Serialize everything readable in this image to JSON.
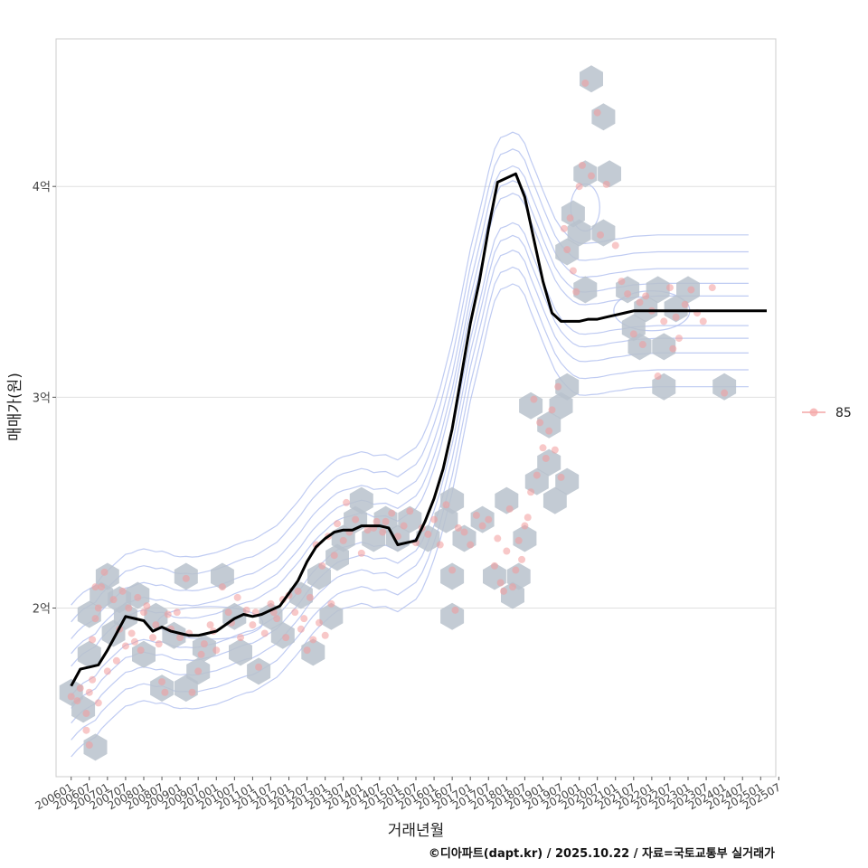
{
  "chart_data": {
    "type": "scatter",
    "title": "",
    "xlabel": "거래년월",
    "ylabel": "매매가(원)",
    "caption": "©디아파트(dapt.kr) / 2025.10.22 / 자료=국토교통부 실거래가",
    "ylim": [
      1.2,
      4.7
    ],
    "xlim": [
      -5,
      233
    ],
    "y_ticks": [
      {
        "value": 2,
        "label": "2억"
      },
      {
        "value": 3,
        "label": "3억"
      },
      {
        "value": 4,
        "label": "4억"
      }
    ],
    "x_ticks": [
      "200601",
      "200607",
      "200701",
      "200707",
      "200801",
      "200807",
      "200901",
      "200907",
      "201001",
      "201007",
      "201101",
      "201107",
      "201201",
      "201207",
      "201301",
      "201307",
      "201401",
      "201407",
      "201501",
      "201507",
      "201601",
      "201607",
      "201701",
      "201707",
      "201801",
      "201807",
      "201901",
      "201907",
      "202001",
      "202007",
      "202101",
      "202107",
      "202201",
      "202207",
      "202301",
      "202307",
      "202401",
      "202407",
      "202501",
      "202507"
    ],
    "legend": {
      "position": "right",
      "entries": [
        {
          "label": "85",
          "color": "#f4a6a6"
        }
      ]
    },
    "colors": {
      "hex": "#b9c2cc",
      "point": "#f29a9a",
      "line": "#000000",
      "contour": "#a9b9ee",
      "grid": "#e0e0e0"
    },
    "series": [
      {
        "name": "moving average (억)",
        "months": [
          0,
          3,
          6,
          9,
          12,
          15,
          18,
          21,
          24,
          27,
          30,
          33,
          36,
          39,
          42,
          45,
          48,
          51,
          54,
          57,
          60,
          63,
          66,
          69,
          72,
          75,
          78,
          81,
          84,
          87,
          90,
          93,
          96,
          99,
          102,
          105,
          108,
          111,
          114,
          117,
          120,
          123,
          126,
          129,
          132,
          135,
          138,
          141,
          144,
          147,
          150,
          153,
          156,
          159,
          162,
          165,
          168,
          171,
          174,
          177,
          180,
          183,
          186,
          189,
          192,
          194,
          196,
          198,
          200,
          202,
          204,
          207,
          210,
          213,
          216,
          219,
          222,
          225,
          228,
          230
        ],
        "values": [
          1.63,
          1.71,
          1.72,
          1.73,
          1.8,
          1.88,
          1.96,
          1.95,
          1.94,
          1.89,
          1.91,
          1.89,
          1.88,
          1.87,
          1.87,
          1.88,
          1.89,
          1.92,
          1.95,
          1.97,
          1.96,
          1.97,
          1.99,
          2.01,
          2.07,
          2.13,
          2.22,
          2.29,
          2.33,
          2.36,
          2.37,
          2.37,
          2.39,
          2.39,
          2.39,
          2.38,
          2.3,
          2.31,
          2.32,
          2.41,
          2.52,
          2.66,
          2.85,
          3.1,
          3.35,
          3.55,
          3.8,
          4.02,
          4.04,
          4.06,
          3.95,
          3.75,
          3.55,
          3.4,
          3.36,
          3.36,
          3.36,
          3.37,
          3.37,
          3.38,
          3.39,
          3.4,
          3.41,
          3.41,
          3.41,
          3.41,
          3.41,
          3.41,
          3.41,
          3.41,
          3.41,
          3.41,
          3.41,
          3.41,
          3.41,
          3.41,
          3.41,
          3.41,
          3.41,
          3.41
        ]
      }
    ],
    "hexbins": [
      {
        "m": 0,
        "v": 1.6
      },
      {
        "m": 4,
        "v": 1.52
      },
      {
        "m": 6,
        "v": 1.78
      },
      {
        "m": 8,
        "v": 1.34
      },
      {
        "m": 6,
        "v": 1.97
      },
      {
        "m": 10,
        "v": 2.06
      },
      {
        "m": 12,
        "v": 2.15
      },
      {
        "m": 14,
        "v": 1.88
      },
      {
        "m": 16,
        "v": 2.04
      },
      {
        "m": 18,
        "v": 1.96
      },
      {
        "m": 22,
        "v": 2.06
      },
      {
        "m": 24,
        "v": 1.78
      },
      {
        "m": 28,
        "v": 1.96
      },
      {
        "m": 30,
        "v": 1.62
      },
      {
        "m": 34,
        "v": 1.87
      },
      {
        "m": 38,
        "v": 1.62
      },
      {
        "m": 38,
        "v": 2.15
      },
      {
        "m": 42,
        "v": 1.7
      },
      {
        "m": 44,
        "v": 1.81
      },
      {
        "m": 50,
        "v": 2.15
      },
      {
        "m": 54,
        "v": 1.96
      },
      {
        "m": 56,
        "v": 1.79
      },
      {
        "m": 62,
        "v": 1.7
      },
      {
        "m": 66,
        "v": 1.96
      },
      {
        "m": 70,
        "v": 1.87
      },
      {
        "m": 76,
        "v": 2.06
      },
      {
        "m": 80,
        "v": 1.79
      },
      {
        "m": 82,
        "v": 2.15
      },
      {
        "m": 86,
        "v": 1.96
      },
      {
        "m": 88,
        "v": 2.24
      },
      {
        "m": 90,
        "v": 2.33
      },
      {
        "m": 94,
        "v": 2.42
      },
      {
        "m": 96,
        "v": 2.51
      },
      {
        "m": 100,
        "v": 2.33
      },
      {
        "m": 104,
        "v": 2.42
      },
      {
        "m": 108,
        "v": 2.33
      },
      {
        "m": 112,
        "v": 2.42
      },
      {
        "m": 118,
        "v": 2.33
      },
      {
        "m": 124,
        "v": 2.42
      },
      {
        "m": 126,
        "v": 2.51
      },
      {
        "m": 126,
        "v": 2.15
      },
      {
        "m": 126,
        "v": 1.96
      },
      {
        "m": 130,
        "v": 2.33
      },
      {
        "m": 136,
        "v": 2.42
      },
      {
        "m": 140,
        "v": 2.15
      },
      {
        "m": 144,
        "v": 2.51
      },
      {
        "m": 146,
        "v": 2.06
      },
      {
        "m": 148,
        "v": 2.15
      },
      {
        "m": 150,
        "v": 2.33
      },
      {
        "m": 152,
        "v": 2.96
      },
      {
        "m": 154,
        "v": 2.6
      },
      {
        "m": 158,
        "v": 2.69
      },
      {
        "m": 158,
        "v": 2.87
      },
      {
        "m": 162,
        "v": 2.96
      },
      {
        "m": 160,
        "v": 2.51
      },
      {
        "m": 164,
        "v": 2.6
      },
      {
        "m": 164,
        "v": 3.05
      },
      {
        "m": 164,
        "v": 3.69
      },
      {
        "m": 166,
        "v": 3.87
      },
      {
        "m": 168,
        "v": 3.78
      },
      {
        "m": 170,
        "v": 3.51
      },
      {
        "m": 170,
        "v": 4.06
      },
      {
        "m": 172,
        "v": 4.51
      },
      {
        "m": 176,
        "v": 4.33
      },
      {
        "m": 178,
        "v": 4.06
      },
      {
        "m": 176,
        "v": 3.78
      },
      {
        "m": 184,
        "v": 3.51
      },
      {
        "m": 186,
        "v": 3.33
      },
      {
        "m": 188,
        "v": 3.24
      },
      {
        "m": 190,
        "v": 3.42
      },
      {
        "m": 194,
        "v": 3.51
      },
      {
        "m": 196,
        "v": 3.24
      },
      {
        "m": 200,
        "v": 3.42
      },
      {
        "m": 204,
        "v": 3.51
      },
      {
        "m": 196,
        "v": 3.05
      },
      {
        "m": 216,
        "v": 3.05
      }
    ],
    "points": [
      {
        "m": 0,
        "v": 1.58
      },
      {
        "m": 2,
        "v": 1.56
      },
      {
        "m": 3,
        "v": 1.62
      },
      {
        "m": 5,
        "v": 1.42
      },
      {
        "m": 5,
        "v": 1.5
      },
      {
        "m": 6,
        "v": 1.35
      },
      {
        "m": 6,
        "v": 1.6
      },
      {
        "m": 7,
        "v": 1.66
      },
      {
        "m": 7,
        "v": 1.85
      },
      {
        "m": 8,
        "v": 1.95
      },
      {
        "m": 8,
        "v": 2.1
      },
      {
        "m": 9,
        "v": 1.55
      },
      {
        "m": 9,
        "v": 2.0
      },
      {
        "m": 10,
        "v": 2.1
      },
      {
        "m": 11,
        "v": 2.17
      },
      {
        "m": 12,
        "v": 1.7
      },
      {
        "m": 14,
        "v": 2.04
      },
      {
        "m": 15,
        "v": 1.75
      },
      {
        "m": 16,
        "v": 1.9
      },
      {
        "m": 17,
        "v": 2.08
      },
      {
        "m": 18,
        "v": 1.82
      },
      {
        "m": 19,
        "v": 2.0
      },
      {
        "m": 20,
        "v": 1.88
      },
      {
        "m": 21,
        "v": 1.84
      },
      {
        "m": 22,
        "v": 2.05
      },
      {
        "m": 23,
        "v": 1.8
      },
      {
        "m": 24,
        "v": 1.98
      },
      {
        "m": 25,
        "v": 2.01
      },
      {
        "m": 27,
        "v": 1.86
      },
      {
        "m": 28,
        "v": 1.92
      },
      {
        "m": 29,
        "v": 1.83
      },
      {
        "m": 30,
        "v": 1.65
      },
      {
        "m": 31,
        "v": 1.6
      },
      {
        "m": 32,
        "v": 1.97
      },
      {
        "m": 33,
        "v": 1.9
      },
      {
        "m": 35,
        "v": 1.98
      },
      {
        "m": 36,
        "v": 1.86
      },
      {
        "m": 38,
        "v": 2.14
      },
      {
        "m": 39,
        "v": 1.88
      },
      {
        "m": 40,
        "v": 1.6
      },
      {
        "m": 42,
        "v": 1.7
      },
      {
        "m": 43,
        "v": 1.78
      },
      {
        "m": 44,
        "v": 1.83
      },
      {
        "m": 46,
        "v": 1.92
      },
      {
        "m": 47,
        "v": 1.89
      },
      {
        "m": 48,
        "v": 1.8
      },
      {
        "m": 50,
        "v": 2.1
      },
      {
        "m": 52,
        "v": 1.98
      },
      {
        "m": 53,
        "v": 1.93
      },
      {
        "m": 55,
        "v": 2.05
      },
      {
        "m": 56,
        "v": 1.86
      },
      {
        "m": 58,
        "v": 1.99
      },
      {
        "m": 60,
        "v": 1.92
      },
      {
        "m": 61,
        "v": 1.98
      },
      {
        "m": 62,
        "v": 1.72
      },
      {
        "m": 64,
        "v": 1.88
      },
      {
        "m": 66,
        "v": 2.02
      },
      {
        "m": 67,
        "v": 1.98
      },
      {
        "m": 68,
        "v": 1.95
      },
      {
        "m": 70,
        "v": 2.04
      },
      {
        "m": 71,
        "v": 1.86
      },
      {
        "m": 72,
        "v": 2.06
      },
      {
        "m": 74,
        "v": 1.98
      },
      {
        "m": 75,
        "v": 2.08
      },
      {
        "m": 76,
        "v": 1.9
      },
      {
        "m": 77,
        "v": 1.95
      },
      {
        "m": 78,
        "v": 1.8
      },
      {
        "m": 79,
        "v": 2.05
      },
      {
        "m": 80,
        "v": 1.85
      },
      {
        "m": 81,
        "v": 2.3
      },
      {
        "m": 82,
        "v": 1.93
      },
      {
        "m": 83,
        "v": 2.2
      },
      {
        "m": 84,
        "v": 1.87
      },
      {
        "m": 85,
        "v": 2.34
      },
      {
        "m": 86,
        "v": 2.02
      },
      {
        "m": 87,
        "v": 2.25
      },
      {
        "m": 88,
        "v": 2.4
      },
      {
        "m": 90,
        "v": 2.32
      },
      {
        "m": 91,
        "v": 2.5
      },
      {
        "m": 92,
        "v": 2.36
      },
      {
        "m": 94,
        "v": 2.42
      },
      {
        "m": 96,
        "v": 2.26
      },
      {
        "m": 98,
        "v": 2.37
      },
      {
        "m": 100,
        "v": 2.38
      },
      {
        "m": 101,
        "v": 2.41
      },
      {
        "m": 103,
        "v": 2.36
      },
      {
        "m": 104,
        "v": 2.41
      },
      {
        "m": 106,
        "v": 2.45
      },
      {
        "m": 108,
        "v": 2.34
      },
      {
        "m": 110,
        "v": 2.39
      },
      {
        "m": 112,
        "v": 2.46
      },
      {
        "m": 114,
        "v": 2.31
      },
      {
        "m": 116,
        "v": 2.38
      },
      {
        "m": 118,
        "v": 2.35
      },
      {
        "m": 120,
        "v": 2.42
      },
      {
        "m": 122,
        "v": 2.3
      },
      {
        "m": 124,
        "v": 2.49
      },
      {
        "m": 126,
        "v": 2.18
      },
      {
        "m": 127,
        "v": 1.99
      },
      {
        "m": 128,
        "v": 2.38
      },
      {
        "m": 130,
        "v": 2.36
      },
      {
        "m": 132,
        "v": 2.3
      },
      {
        "m": 134,
        "v": 2.44
      },
      {
        "m": 136,
        "v": 2.39
      },
      {
        "m": 138,
        "v": 2.42
      },
      {
        "m": 140,
        "v": 2.2
      },
      {
        "m": 141,
        "v": 2.33
      },
      {
        "m": 142,
        "v": 2.12
      },
      {
        "m": 143,
        "v": 2.08
      },
      {
        "m": 144,
        "v": 2.27
      },
      {
        "m": 145,
        "v": 2.47
      },
      {
        "m": 146,
        "v": 2.1
      },
      {
        "m": 147,
        "v": 2.18
      },
      {
        "m": 148,
        "v": 2.32
      },
      {
        "m": 149,
        "v": 2.23
      },
      {
        "m": 150,
        "v": 2.39
      },
      {
        "m": 151,
        "v": 2.43
      },
      {
        "m": 152,
        "v": 2.55
      },
      {
        "m": 153,
        "v": 2.99
      },
      {
        "m": 154,
        "v": 2.63
      },
      {
        "m": 155,
        "v": 2.88
      },
      {
        "m": 156,
        "v": 2.76
      },
      {
        "m": 157,
        "v": 2.71
      },
      {
        "m": 158,
        "v": 2.84
      },
      {
        "m": 159,
        "v": 2.94
      },
      {
        "m": 160,
        "v": 2.75
      },
      {
        "m": 161,
        "v": 3.05
      },
      {
        "m": 162,
        "v": 2.62
      },
      {
        "m": 163,
        "v": 3.8
      },
      {
        "m": 164,
        "v": 3.7
      },
      {
        "m": 165,
        "v": 3.85
      },
      {
        "m": 166,
        "v": 3.6
      },
      {
        "m": 167,
        "v": 3.5
      },
      {
        "m": 168,
        "v": 4.0
      },
      {
        "m": 169,
        "v": 4.1
      },
      {
        "m": 170,
        "v": 4.49
      },
      {
        "m": 172,
        "v": 4.05
      },
      {
        "m": 174,
        "v": 4.35
      },
      {
        "m": 175,
        "v": 3.77
      },
      {
        "m": 177,
        "v": 4.01
      },
      {
        "m": 180,
        "v": 3.72
      },
      {
        "m": 182,
        "v": 3.55
      },
      {
        "m": 184,
        "v": 3.49
      },
      {
        "m": 186,
        "v": 3.3
      },
      {
        "m": 188,
        "v": 3.45
      },
      {
        "m": 189,
        "v": 3.25
      },
      {
        "m": 190,
        "v": 3.48
      },
      {
        "m": 192,
        "v": 3.41
      },
      {
        "m": 194,
        "v": 3.1
      },
      {
        "m": 196,
        "v": 3.36
      },
      {
        "m": 198,
        "v": 3.52
      },
      {
        "m": 199,
        "v": 3.23
      },
      {
        "m": 200,
        "v": 3.38
      },
      {
        "m": 201,
        "v": 3.28
      },
      {
        "m": 203,
        "v": 3.44
      },
      {
        "m": 205,
        "v": 3.51
      },
      {
        "m": 207,
        "v": 3.4
      },
      {
        "m": 209,
        "v": 3.36
      },
      {
        "m": 212,
        "v": 3.52
      },
      {
        "m": 216,
        "v": 3.02
      }
    ]
  }
}
